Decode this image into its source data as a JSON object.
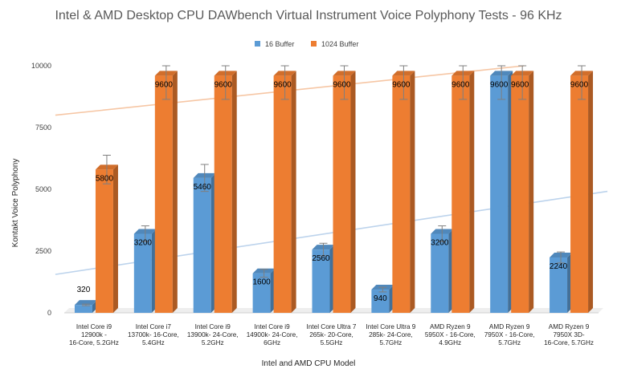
{
  "chart_data": {
    "type": "bar",
    "title": "Intel & AMD Desktop CPU DAWbench Virtual Instrument Voice Polyphony Tests - 96 KHz",
    "xlabel": "Intel and AMD CPU Model",
    "ylabel": "Kontakt Voice Polyphony",
    "ylim": [
      0,
      10000
    ],
    "yticks": [
      0,
      2500,
      5000,
      7500,
      10000
    ],
    "grid": false,
    "legend_position": "top",
    "categories": [
      [
        "Intel Core i9",
        "12900k -",
        "16-Core, 5.2GHz"
      ],
      [
        "Intel Core i7",
        "13700k- 16-Core,",
        "5.4GHz"
      ],
      [
        "Intel Core i9",
        "13900k- 24-Core,",
        "5.2GHz"
      ],
      [
        "Intel Core i9",
        "14900k- 24-Core,",
        "6GHz"
      ],
      [
        "Intel Core Ultra 7",
        "265k- 20-Core,",
        "5.5GHz"
      ],
      [
        "Intel Core Ultra 9",
        "285k- 24-Core,",
        "5.7GHz"
      ],
      [
        "AMD Ryzen 9",
        "5950X - 16-Core,",
        "4.9GHz"
      ],
      [
        "AMD Ryzen 9",
        "7950X - 16-Core,",
        "5.7GHz"
      ],
      [
        "AMD Ryzen 9",
        "7950X 3D-",
        "16-Core, 5.7GHz"
      ]
    ],
    "series": [
      {
        "name": "16 Buffer",
        "color": "#5b9bd5",
        "values": [
          320,
          3200,
          5460,
          1600,
          2560,
          940,
          3200,
          9600,
          2240
        ],
        "labels": [
          "320",
          "3200",
          "5460",
          "1600",
          "2560",
          "940",
          "3200",
          "9600",
          "2240"
        ],
        "error": 0.1,
        "trendline": true
      },
      {
        "name": "1024 Buffer",
        "color": "#ed7d31",
        "values": [
          5800,
          9600,
          9600,
          9600,
          9600,
          9600,
          9600,
          9600,
          9600
        ],
        "labels": [
          "5800",
          "9600",
          "9600",
          "9600",
          "9600",
          "9600",
          "9600",
          "9600",
          "9600"
        ],
        "error": 0.1,
        "trendline": true
      }
    ]
  }
}
